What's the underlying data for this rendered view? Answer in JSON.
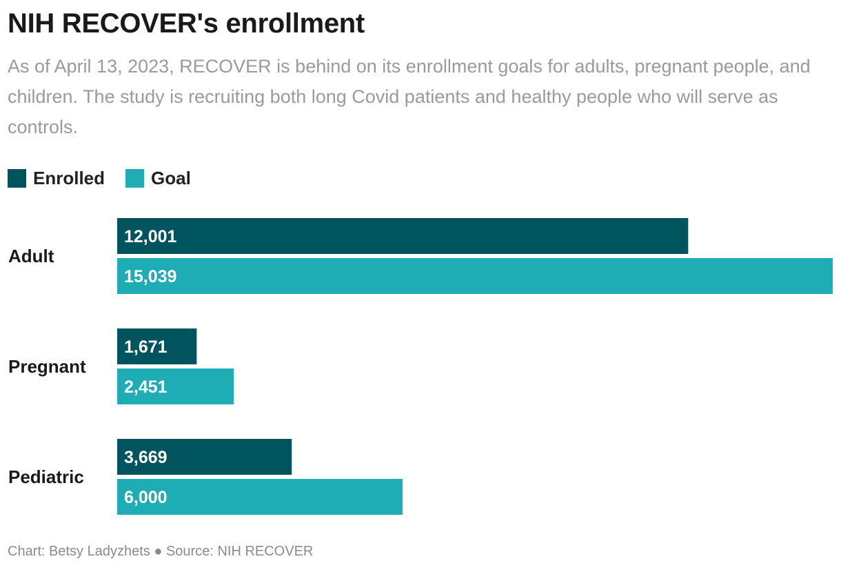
{
  "header": {
    "title": "NIH RECOVER's enrollment",
    "subtitle": "As of April 13, 2023, RECOVER is behind on its enrollment goals for adults, pregnant people, and children. The study is recruiting both long Covid patients and healthy people who will serve as controls."
  },
  "colors": {
    "enrolled": "#00545e",
    "goal": "#1fadb5",
    "bar_label": "#ffffff"
  },
  "chart_data": {
    "type": "bar",
    "orientation": "horizontal",
    "categories": [
      "Adult",
      "Pregnant",
      "Pediatric"
    ],
    "series": [
      {
        "name": "Enrolled",
        "values": [
          12001,
          1671,
          3669
        ],
        "labels": [
          "12,001",
          "1,671",
          "3,669"
        ]
      },
      {
        "name": "Goal",
        "values": [
          15039,
          2451,
          6000
        ],
        "labels": [
          "15,039",
          "2,451",
          "6,000"
        ]
      }
    ],
    "xlim": [
      0,
      15039
    ],
    "grid": false,
    "legend_placement": "top-left"
  },
  "footer": {
    "credit": "Chart: Betsy Ladyzhets ● Source: NIH RECOVER"
  }
}
